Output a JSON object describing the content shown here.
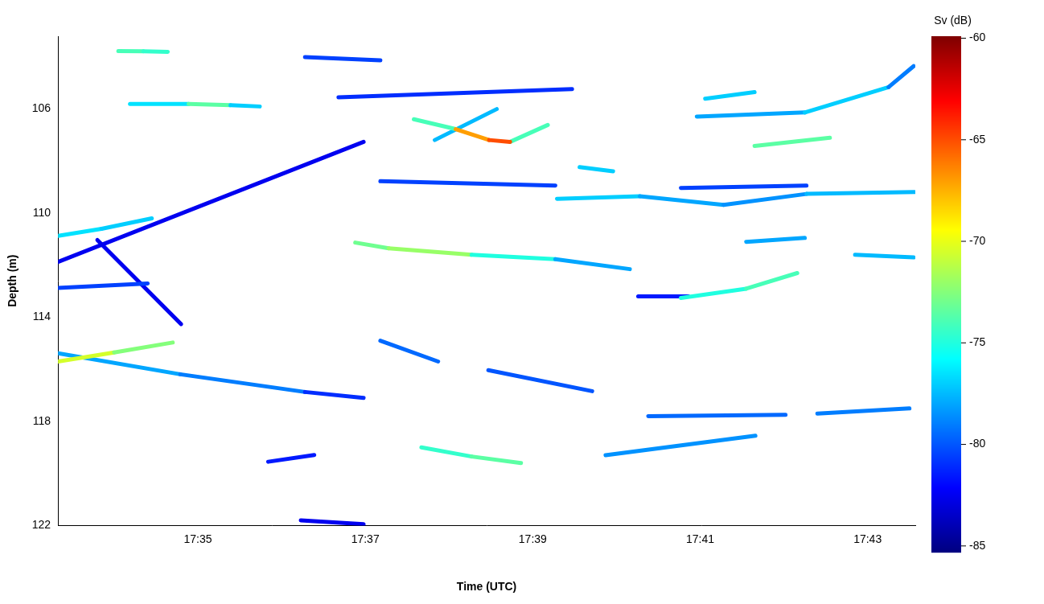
{
  "chart_data": {
    "type": "echogram",
    "xlabel": "Time (UTC)",
    "ylabel": "Depth (m)",
    "xlim": [
      1053.33,
      1063.57
    ],
    "xticks": [
      {
        "value": 1055,
        "label": "17:35"
      },
      {
        "value": 1057,
        "label": "17:37"
      },
      {
        "value": 1059,
        "label": "17:39"
      },
      {
        "value": 1061,
        "label": "17:41"
      },
      {
        "value": 1063,
        "label": "17:43"
      }
    ],
    "ylim": [
      103.2,
      122
    ],
    "yticks": [
      106,
      110,
      114,
      118,
      122
    ],
    "colorbar": {
      "title": "Sv (dB)",
      "range": [
        -85.3,
        -59.9
      ],
      "ticks": [
        -85,
        -80,
        -75,
        -70,
        -65,
        -60
      ]
    },
    "tracks": [
      {
        "x": [
          1054.05,
          1054.35,
          1054.64
        ],
        "y": [
          103.77,
          103.78,
          103.8
        ],
        "sv": [
          -76,
          -72,
          -77
        ]
      },
      {
        "x": [
          1054.19,
          1054.89,
          1055.39,
          1055.74
        ],
        "y": [
          105.8,
          105.8,
          105.85,
          105.9
        ],
        "sv": [
          -80,
          -73,
          -74,
          -80
        ]
      },
      {
        "x": [
          1053.33,
          1053.85,
          1054.45
        ],
        "y": [
          110.87,
          110.6,
          110.2
        ],
        "sv": [
          -77,
          -76,
          -78
        ]
      },
      {
        "x": [
          1056.88,
          1057.28,
          1058.27,
          1059.27,
          1060.16
        ],
        "y": [
          111.13,
          111.35,
          111.6,
          111.77,
          112.15
        ],
        "sv": [
          -76,
          -70,
          -74,
          -76,
          -80
        ]
      },
      {
        "x": [
          1057.58,
          1058.08,
          1058.48,
          1058.73
        ],
        "y": [
          106.39,
          106.77,
          107.19,
          107.26
        ],
        "sv": [
          -78,
          -70,
          -64,
          -66
        ]
      },
      {
        "x": [
          1058.73,
          1059.18
        ],
        "y": [
          107.26,
          106.61
        ],
        "sv": [
          -70,
          -78
        ]
      },
      {
        "x": [
          1057.83,
          1058.57
        ],
        "y": [
          107.19,
          106.0
        ],
        "sv": [
          -80,
          -75
        ]
      },
      {
        "x": [
          1060.96,
          1062.25,
          1063.25,
          1063.55
        ],
        "y": [
          106.29,
          106.13,
          105.16,
          104.35
        ],
        "sv": [
          -80,
          -76,
          -78,
          -80
        ]
      },
      {
        "x": [
          1061.06,
          1061.65
        ],
        "y": [
          105.6,
          105.35
        ],
        "sv": [
          -78,
          -76
        ]
      },
      {
        "x": [
          1061.65,
          1062.55
        ],
        "y": [
          107.42,
          107.1
        ],
        "sv": [
          -74,
          -73
        ]
      },
      {
        "x": [
          1059.29,
          1060.28,
          1061.28,
          1062.27,
          1063.56
        ],
        "y": [
          109.45,
          109.35,
          109.68,
          109.26,
          109.19
        ],
        "sv": [
          -78,
          -76,
          -80,
          -77,
          -78
        ]
      },
      {
        "x": [
          1060.77,
          1061.55,
          1062.16
        ],
        "y": [
          113.26,
          112.9,
          112.3
        ],
        "sv": [
          -80,
          -70,
          -78
        ]
      },
      {
        "x": [
          1060.26,
          1060.86
        ],
        "y": [
          113.2,
          113.2
        ],
        "sv": [
          -82,
          -81
        ]
      },
      {
        "x": [
          1061.55,
          1062.25
        ],
        "y": [
          111.1,
          110.95
        ],
        "sv": [
          -77,
          -79
        ]
      },
      {
        "x": [
          1062.85,
          1063.55
        ],
        "y": [
          111.6,
          111.7
        ],
        "sv": [
          -78,
          -77
        ]
      },
      {
        "x": [
          1053.33,
          1054.4
        ],
        "y": [
          112.87,
          112.7
        ],
        "sv": [
          -81,
          -80
        ]
      },
      {
        "x": [
          1053.33,
          1054.0,
          1054.7
        ],
        "y": [
          115.7,
          115.35,
          114.97
        ],
        "sv": [
          -72,
          -69,
          -76
        ]
      },
      {
        "x": [
          1053.33,
          1054.79,
          1056.28,
          1056.98
        ],
        "y": [
          115.38,
          116.19,
          116.87,
          117.1
        ],
        "sv": [
          -78,
          -78,
          -80,
          -82
        ]
      },
      {
        "x": [
          1057.18,
          1057.87
        ],
        "y": [
          114.9,
          115.7
        ],
        "sv": [
          -80,
          -79
        ]
      },
      {
        "x": [
          1058.47,
          1059.71
        ],
        "y": [
          116.03,
          116.84
        ],
        "sv": [
          -79,
          -81
        ]
      },
      {
        "x": [
          1057.67,
          1058.27,
          1058.86
        ],
        "y": [
          119.0,
          119.35,
          119.6
        ],
        "sv": [
          -78,
          -71,
          -76
        ]
      },
      {
        "x": [
          1060.38,
          1062.02
        ],
        "y": [
          117.8,
          117.75
        ],
        "sv": [
          -80,
          -79
        ]
      },
      {
        "x": [
          1062.4,
          1063.5
        ],
        "y": [
          117.7,
          117.5
        ],
        "sv": [
          -80,
          -78
        ]
      },
      {
        "x": [
          1059.87,
          1061.66
        ],
        "y": [
          119.3,
          118.55
        ],
        "sv": [
          -80,
          -77
        ]
      },
      {
        "x": [
          1055.84,
          1056.39
        ],
        "y": [
          119.55,
          119.29
        ],
        "sv": [
          -82,
          -81
        ]
      },
      {
        "x": [
          1056.23,
          1056.98
        ],
        "y": [
          121.8,
          121.95
        ],
        "sv": [
          -83,
          -82
        ]
      },
      {
        "x": [
          1056.28,
          1057.18
        ],
        "y": [
          104.0,
          104.13
        ],
        "sv": [
          -80,
          -81
        ]
      },
      {
        "x": [
          1056.68,
          1059.47
        ],
        "y": [
          105.55,
          105.23
        ],
        "sv": [
          -82,
          -80
        ]
      },
      {
        "x": [
          1053.33,
          1056.98
        ],
        "y": [
          111.87,
          107.26
        ],
        "sv": [
          -83,
          -82
        ]
      },
      {
        "x": [
          1053.8,
          1054.8
        ],
        "y": [
          111.03,
          114.26
        ],
        "sv": [
          -83,
          -82
        ]
      },
      {
        "x": [
          1057.18,
          1059.27
        ],
        "y": [
          108.77,
          108.94
        ],
        "sv": [
          -81,
          -80
        ]
      },
      {
        "x": [
          1059.56,
          1059.96
        ],
        "y": [
          108.23,
          108.39
        ],
        "sv": [
          -76,
          -78
        ]
      },
      {
        "x": [
          1060.77,
          1062.27
        ],
        "y": [
          109.03,
          108.94
        ],
        "sv": [
          -81,
          -80
        ]
      }
    ]
  }
}
